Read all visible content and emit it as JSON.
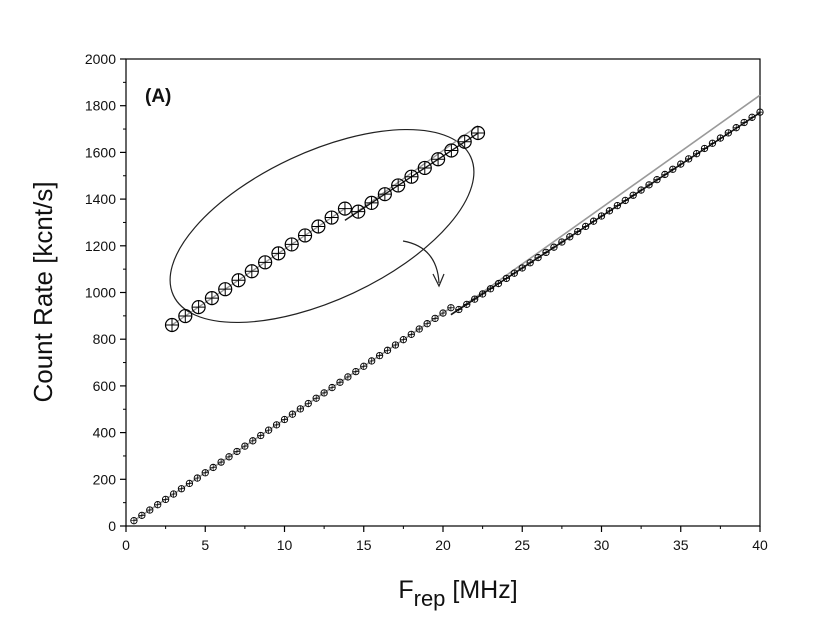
{
  "chart_data": {
    "type": "scatter",
    "panel_label": "(A)",
    "xlabel": {
      "main": "F",
      "sub": "rep",
      "rest": " [MHz]"
    },
    "ylabel": "Count Rate [kcnt/s]",
    "xlim": [
      0,
      40
    ],
    "ylim": [
      0,
      2000
    ],
    "x_ticks": [
      0,
      5,
      10,
      15,
      20,
      25,
      30,
      35,
      40
    ],
    "y_ticks": [
      0,
      200,
      400,
      600,
      800,
      1000,
      1200,
      1400,
      1600,
      1800,
      2000
    ],
    "grid": false,
    "legend": "none",
    "series": [
      {
        "marker": "circle-with-cross",
        "x_start": 0.5,
        "x_end": 40.0,
        "x_step": 0.5,
        "slope_low": 45.6,
        "x_break": 20.5,
        "break_drop": 30,
        "slope_high": 44.5
      }
    ],
    "fit_lines": [
      {
        "color": "#9a9a9a",
        "points": [
          [
            0.5,
            23
          ],
          [
            20.5,
            935
          ]
        ]
      },
      {
        "color": "#9a9a9a",
        "points": [
          [
            20.5,
            905
          ],
          [
            40,
            1845
          ]
        ]
      },
      {
        "color": "#1a1a1a",
        "points": [
          [
            20.5,
            905
          ],
          [
            40,
            1770
          ]
        ]
      }
    ],
    "inset": {
      "x_from": 14.0,
      "x_to": 25.5,
      "marker_count": 24
    },
    "colors": {
      "data": "#000000",
      "fit": "#9a9a9a"
    }
  }
}
